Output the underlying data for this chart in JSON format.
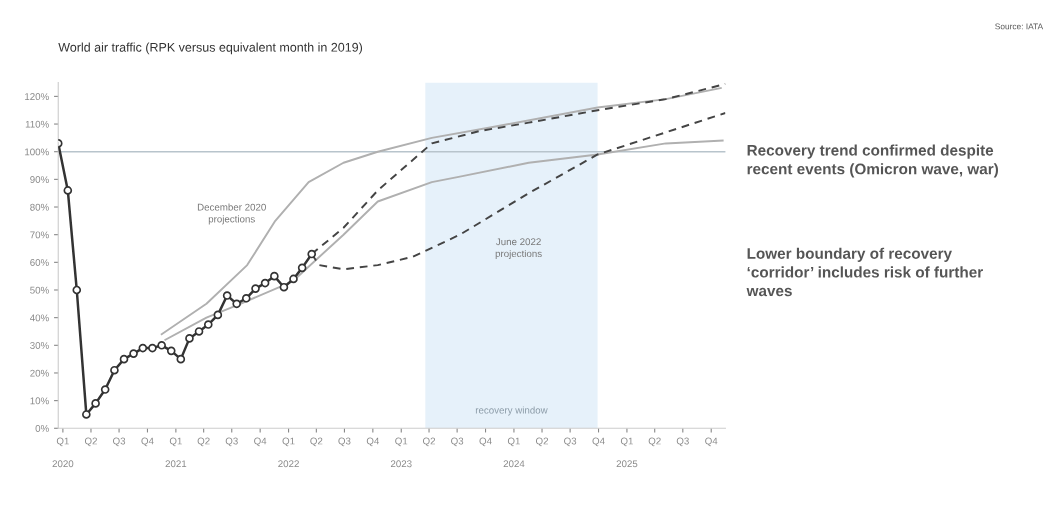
{
  "chart_data": {
    "type": "line",
    "title": "World air traffic (RPK versus equivalent month in 2019)",
    "xlim": [
      "2020-01",
      "2025-12"
    ],
    "ylim": [
      0,
      125
    ],
    "xticks": [
      {
        "value": "2020-01-16",
        "label": "Q1"
      },
      {
        "value": "2020-04-16",
        "label": "Q2"
      },
      {
        "value": "2020-07-16",
        "label": "Q3"
      },
      {
        "value": "2020-10-16",
        "label": "Q4"
      },
      {
        "value": "2021-01-16",
        "label": "Q1"
      },
      {
        "value": "2021-04-16",
        "label": "Q2"
      },
      {
        "value": "2021-07-16",
        "label": "Q3"
      },
      {
        "value": "2021-10-16",
        "label": "Q4"
      },
      {
        "value": "2022-01-16",
        "label": "Q1"
      },
      {
        "value": "2022-04-16",
        "label": "Q2"
      },
      {
        "value": "2022-07-16",
        "label": "Q3"
      },
      {
        "value": "2022-10-16",
        "label": "Q4"
      },
      {
        "value": "2023-01-16",
        "label": "Q1"
      },
      {
        "value": "2023-04-16",
        "label": "Q2"
      },
      {
        "value": "2023-07-16",
        "label": "Q3"
      },
      {
        "value": "2023-10-16",
        "label": "Q4"
      },
      {
        "value": "2024-01-16",
        "label": "Q1"
      },
      {
        "value": "2024-04-16",
        "label": "Q2"
      },
      {
        "value": "2024-07-16",
        "label": "Q3"
      },
      {
        "value": "2024-10-16",
        "label": "Q4"
      },
      {
        "value": "2025-01-16",
        "label": "Q1"
      },
      {
        "value": "2025-04-16",
        "label": "Q2"
      },
      {
        "value": "2025-07-16",
        "label": "Q3"
      },
      {
        "value": "2025-10-16",
        "label": "Q4"
      }
    ],
    "yticks": [
      {
        "value": 0,
        "label": "0%"
      },
      {
        "value": 10,
        "label": "10%"
      },
      {
        "value": 20,
        "label": "20%"
      },
      {
        "value": 30,
        "label": "30%"
      },
      {
        "value": 40,
        "label": "40%"
      },
      {
        "value": 50,
        "label": "50%"
      },
      {
        "value": 60,
        "label": "60%"
      },
      {
        "value": 70,
        "label": "70%"
      },
      {
        "value": 80,
        "label": "80%"
      },
      {
        "value": 90,
        "label": "90%"
      },
      {
        "value": 100,
        "label": "100%"
      },
      {
        "value": 110,
        "label": "110%"
      },
      {
        "value": 120,
        "label": "120%"
      }
    ],
    "grid": false,
    "legend": false,
    "series": [
      {
        "color": "#b0b0b0",
        "line_style": "solid",
        "marker": "none",
        "x": [
          "2020-12",
          "2021-04-25",
          "2021-09-04",
          "2021-12-04",
          "2022-03-22",
          "2022-07-13",
          "2022-11",
          "2023-04-25",
          "2023-11-13",
          "2024-10-13",
          "2025-05-22",
          "2025-11-16"
        ],
        "values": [
          34,
          45,
          59,
          75,
          89,
          96,
          100,
          105,
          109,
          116,
          119,
          123
        ]
      },
      {
        "color": "#b0b0b0",
        "line_style": "solid",
        "marker": "none",
        "x": [
          "2020-12-13",
          "2021-04-25",
          "2021-08-13",
          "2022-01-28",
          "2022-07-13",
          "2022-11",
          "2023-04-25",
          "2023-07-25",
          "2024-03-04",
          "2024-10-13",
          "2025-05-22",
          "2025-11-22"
        ],
        "values": [
          32,
          40,
          45,
          53,
          70,
          82,
          89,
          91,
          96,
          99,
          103,
          104
        ]
      },
      {
        "color": "#444444",
        "line_style": "dashed",
        "marker": "none",
        "x": [
          "2022-04",
          "2022-07-13",
          "2022-11",
          "2023-04-25",
          "2023-09-28",
          "2024-03-04",
          "2024-10-13",
          "2025-05-22",
          "2025-12"
        ],
        "values": [
          63,
          72.5,
          86,
          103,
          107.5,
          110.5,
          115,
          119,
          124.5
        ]
      },
      {
        "color": "#444444",
        "line_style": "dashed",
        "marker": "none",
        "x": [
          "2022-04",
          "2022-04-25",
          "2022-07-13",
          "2022-11",
          "2023-02-22",
          "2023-07-25",
          "2024-03-04",
          "2024-10-13",
          "2025-05-22",
          "2025-12"
        ],
        "values": [
          63,
          59,
          57.5,
          59,
          62,
          70,
          85,
          99,
          107,
          114
        ]
      },
      {
        "color": "#333333",
        "line_style": "solid",
        "marker": "circle",
        "x": [
          "2020-01",
          "2020-02",
          "2020-03",
          "2020-04",
          "2020-05",
          "2020-06",
          "2020-07",
          "2020-08",
          "2020-09",
          "2020-10",
          "2020-11",
          "2020-12",
          "2021-01",
          "2021-02",
          "2021-03",
          "2021-04",
          "2021-05",
          "2021-06",
          "2021-07",
          "2021-08",
          "2021-09",
          "2021-10",
          "2021-11",
          "2021-12",
          "2022-01",
          "2022-02",
          "2022-03",
          "2022-04"
        ],
        "values": [
          103,
          86,
          50,
          5,
          9,
          14,
          21,
          25,
          27,
          29,
          29,
          30,
          28,
          25,
          32.5,
          35,
          37.5,
          41,
          48,
          45,
          47,
          50.5,
          52.5,
          55,
          51,
          54,
          58,
          63
        ]
      }
    ],
    "ref_lines": [
      {
        "axis": "y",
        "value": 100,
        "color": "#b8c4cc",
        "line_style": "solid"
      }
    ],
    "bands": [
      {
        "axis": "x",
        "from": "2023-04-04",
        "to": "2024-10-13",
        "label": "recovery window",
        "color": "#e6f1fa"
      }
    ],
    "annotations": [
      "December 2020\nprojections",
      "June 2022\nprojections",
      "Source: IATA",
      "Recovery trend confirmed despite\nrecent events (Omicron wave, war)",
      "Lower boundary of recovery\n‘corridor’ includes risk of further\nwaves",
      "2020",
      "2021",
      "2022",
      "2023",
      "2024",
      "2025"
    ]
  }
}
